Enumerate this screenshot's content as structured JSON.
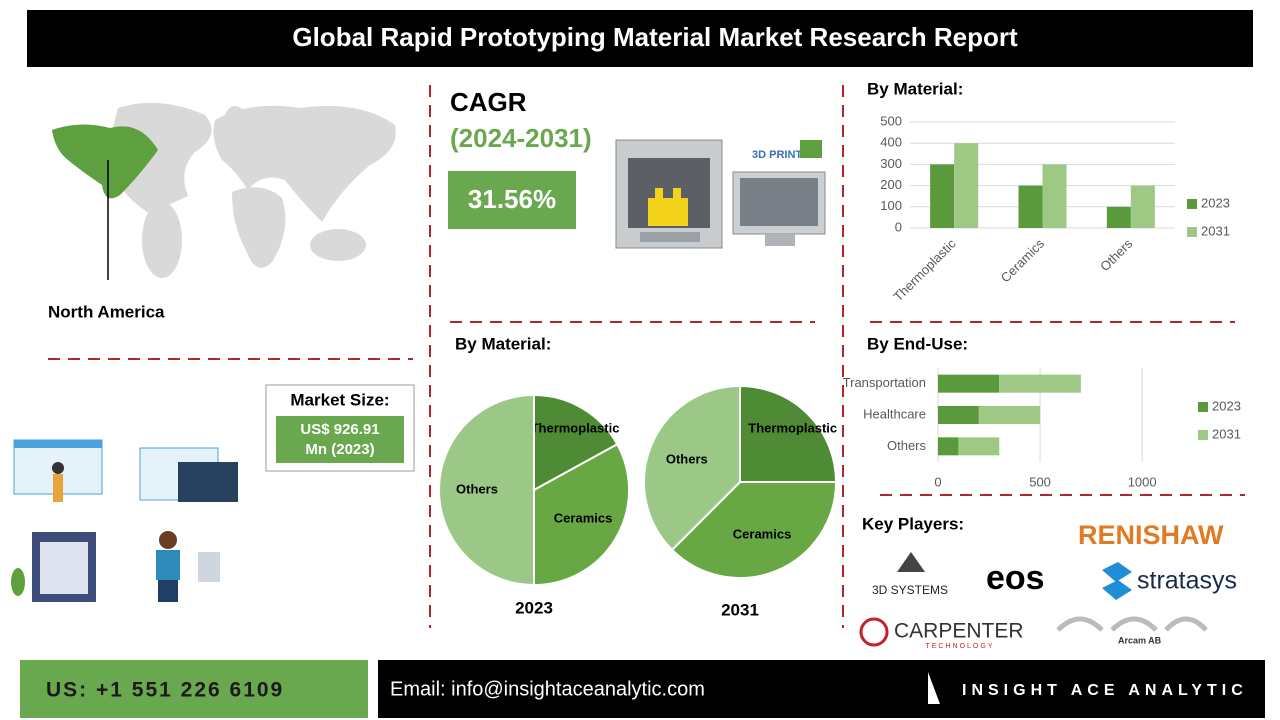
{
  "header": {
    "title": "Global Rapid Prototyping Material Market Research Report"
  },
  "cagr": {
    "label": "CAGR",
    "period": "(2024-2031)",
    "value": "31.56%"
  },
  "printer_label": "3D PRINTER",
  "region": "North America",
  "market_size": {
    "label": "Market Size:",
    "value": "US$ 926.91",
    "unit": "Mn (2023)"
  },
  "key_players": {
    "label": "Key Players:",
    "companies": [
      "RENISHAW",
      "3D SYSTEMS",
      "eos",
      "stratasys",
      "CARPENTER",
      "TECHNOLOGY",
      "Arcam AB"
    ]
  },
  "footer": {
    "phone": "US: +1 551 226 6109",
    "email": "Email: info@insightaceanalytic.com",
    "brand": "INSIGHT ACE ANALYTIC"
  },
  "chart_data": [
    {
      "type": "bar",
      "title": "By Material:",
      "categories": [
        "Thermoplastic",
        "Ceramics",
        "Others"
      ],
      "series": [
        {
          "name": "2023",
          "color": "#5a9a3c",
          "values": [
            300,
            200,
            100
          ]
        },
        {
          "name": "2031",
          "color": "#9dc985",
          "values": [
            400,
            300,
            200
          ]
        }
      ],
      "ylim": [
        0,
        500
      ],
      "yticks": [
        0,
        100,
        200,
        300,
        400,
        500
      ],
      "grid": true,
      "legend": "right"
    },
    {
      "type": "pie",
      "title": "By Material:",
      "subtitle": "2023",
      "categories": [
        "Thermoplastic",
        "Ceramics",
        "Others"
      ],
      "values": [
        17,
        33,
        50
      ],
      "colors": [
        "#4f8a35",
        "#67a845",
        "#9bc887"
      ]
    },
    {
      "type": "pie",
      "subtitle": "2031",
      "categories": [
        "Thermoplastic",
        "Ceramics",
        "Others"
      ],
      "values": [
        25,
        37.5,
        37.5
      ],
      "colors": [
        "#4f8a35",
        "#67a845",
        "#9bc887"
      ]
    },
    {
      "type": "barh",
      "title": "By End-Use:",
      "stacked": true,
      "categories": [
        "Transportation",
        "Healthcare",
        "Others"
      ],
      "series": [
        {
          "name": "2023",
          "color": "#5a9a3c",
          "values": [
            300,
            200,
            100
          ]
        },
        {
          "name": "2031",
          "color": "#9dc985",
          "values": [
            400,
            300,
            200
          ]
        }
      ],
      "xlim": [
        0,
        1200
      ],
      "xticks": [
        0,
        500,
        1000
      ],
      "grid": true,
      "legend": "right"
    }
  ]
}
